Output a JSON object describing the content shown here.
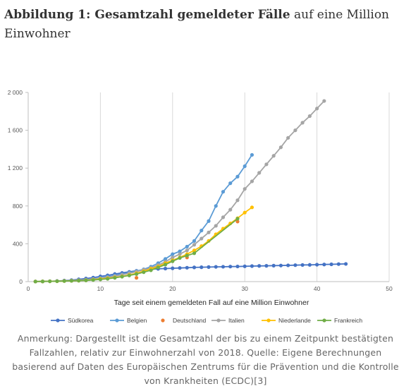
{
  "figure": {
    "title_bold": "Abbildung 1: Gesamtzahl gemeldeter Fälle",
    "title_rest": " auf eine Million Einwohner",
    "note": "Anmerkung: Dargestellt ist die Gesamtzahl der bis zu einem Zeitpunkt bestätigten Fallzahlen, relativ zur Einwohnerzahl von 2018. Quelle: Eigene Berechnungen basierend auf Daten des Europäischen Zentrums für die Prävention und die Kontrolle von Krankheiten (ECDC)[3]"
  },
  "chart_data": {
    "type": "line",
    "title": "",
    "xlabel": "Tage seit einem gemeldeten Fall auf eine Million Einwohner",
    "ylabel": "",
    "xlim": [
      0,
      50
    ],
    "ylim": [
      0,
      2000
    ],
    "xticks": [
      0,
      10,
      20,
      30,
      40,
      50
    ],
    "yticks": [
      0,
      400,
      800,
      1200,
      1600,
      2000
    ],
    "ytick_labels": [
      "0",
      "400",
      "800",
      "1 200",
      "1 600",
      "2 000"
    ],
    "grid": "vertical",
    "legend_position": "bottom",
    "series": [
      {
        "name": "Südkorea",
        "color": "#4472c4",
        "x": [
          1,
          2,
          3,
          4,
          5,
          6,
          7,
          8,
          9,
          10,
          11,
          12,
          13,
          14,
          15,
          16,
          17,
          18,
          19,
          20,
          21,
          22,
          23,
          24,
          25,
          26,
          27,
          28,
          29,
          30,
          31,
          32,
          33,
          34,
          35,
          36,
          37,
          38,
          39,
          40,
          41,
          42,
          43,
          44
        ],
        "y": [
          1,
          2,
          4,
          7,
          11,
          16,
          24,
          33,
          42,
          55,
          66,
          80,
          92,
          103,
          114,
          122,
          130,
          135,
          138,
          141,
          144,
          147,
          150,
          152,
          154,
          156,
          157,
          159,
          160,
          162,
          164,
          166,
          167,
          169,
          170,
          172,
          174,
          176,
          177,
          179,
          181,
          183,
          185,
          187
        ]
      },
      {
        "name": "Belgien",
        "color": "#5b9bd5",
        "x": [
          8,
          9,
          10,
          11,
          12,
          13,
          14,
          15,
          16,
          17,
          18,
          19,
          20,
          21,
          22,
          23,
          24,
          25,
          26,
          27,
          28,
          29,
          30,
          31
        ],
        "y": [
          20,
          28,
          38,
          52,
          65,
          78,
          95,
          110,
          130,
          158,
          195,
          240,
          290,
          320,
          370,
          430,
          540,
          640,
          800,
          950,
          1040,
          1110,
          1220,
          1340
        ]
      },
      {
        "name": "Deutschland",
        "color": "#ed7d31",
        "x": [
          8,
          15,
          22,
          29
        ],
        "y": [
          15,
          40,
          255,
          635
        ]
      },
      {
        "name": "Italien",
        "color": "#a5a5a5",
        "x": [
          1,
          2,
          3,
          4,
          5,
          6,
          7,
          8,
          9,
          10,
          11,
          12,
          13,
          14,
          15,
          16,
          17,
          18,
          19,
          20,
          21,
          22,
          23,
          24,
          25,
          26,
          27,
          28,
          29,
          30,
          31,
          32,
          33,
          34,
          35,
          36,
          37,
          38,
          39,
          40,
          41
        ],
        "y": [
          1,
          2,
          4,
          6,
          9,
          12,
          16,
          20,
          26,
          34,
          45,
          58,
          72,
          88,
          105,
          125,
          145,
          175,
          210,
          255,
          290,
          330,
          390,
          455,
          520,
          590,
          680,
          760,
          860,
          980,
          1060,
          1150,
          1240,
          1330,
          1420,
          1520,
          1600,
          1680,
          1750,
          1830,
          1910
        ]
      },
      {
        "name": "Niederlande",
        "color": "#ffc000",
        "x": [
          1,
          2,
          3,
          4,
          5,
          6,
          7,
          8,
          9,
          10,
          11,
          12,
          13,
          14,
          15,
          16,
          17,
          18,
          19,
          20,
          21,
          22,
          23,
          24,
          25,
          26,
          27,
          28,
          29,
          30,
          31
        ],
        "y": [
          1,
          2,
          3,
          4,
          6,
          8,
          10,
          14,
          20,
          28,
          36,
          45,
          55,
          70,
          88,
          110,
          135,
          160,
          195,
          225,
          255,
          290,
          330,
          375,
          430,
          500,
          560,
          615,
          670,
          730,
          785
        ]
      },
      {
        "name": "Frankreich",
        "color": "#70ad47",
        "x": [
          1,
          2,
          3,
          4,
          5,
          6,
          7,
          8,
          9,
          10,
          11,
          12,
          13,
          14,
          15,
          16,
          17,
          18,
          19,
          20,
          21,
          22,
          23,
          29
        ],
        "y": [
          1,
          2,
          3,
          4,
          6,
          8,
          10,
          13,
          17,
          23,
          30,
          40,
          52,
          65,
          80,
          100,
          120,
          150,
          180,
          215,
          250,
          275,
          300,
          665
        ]
      }
    ]
  }
}
